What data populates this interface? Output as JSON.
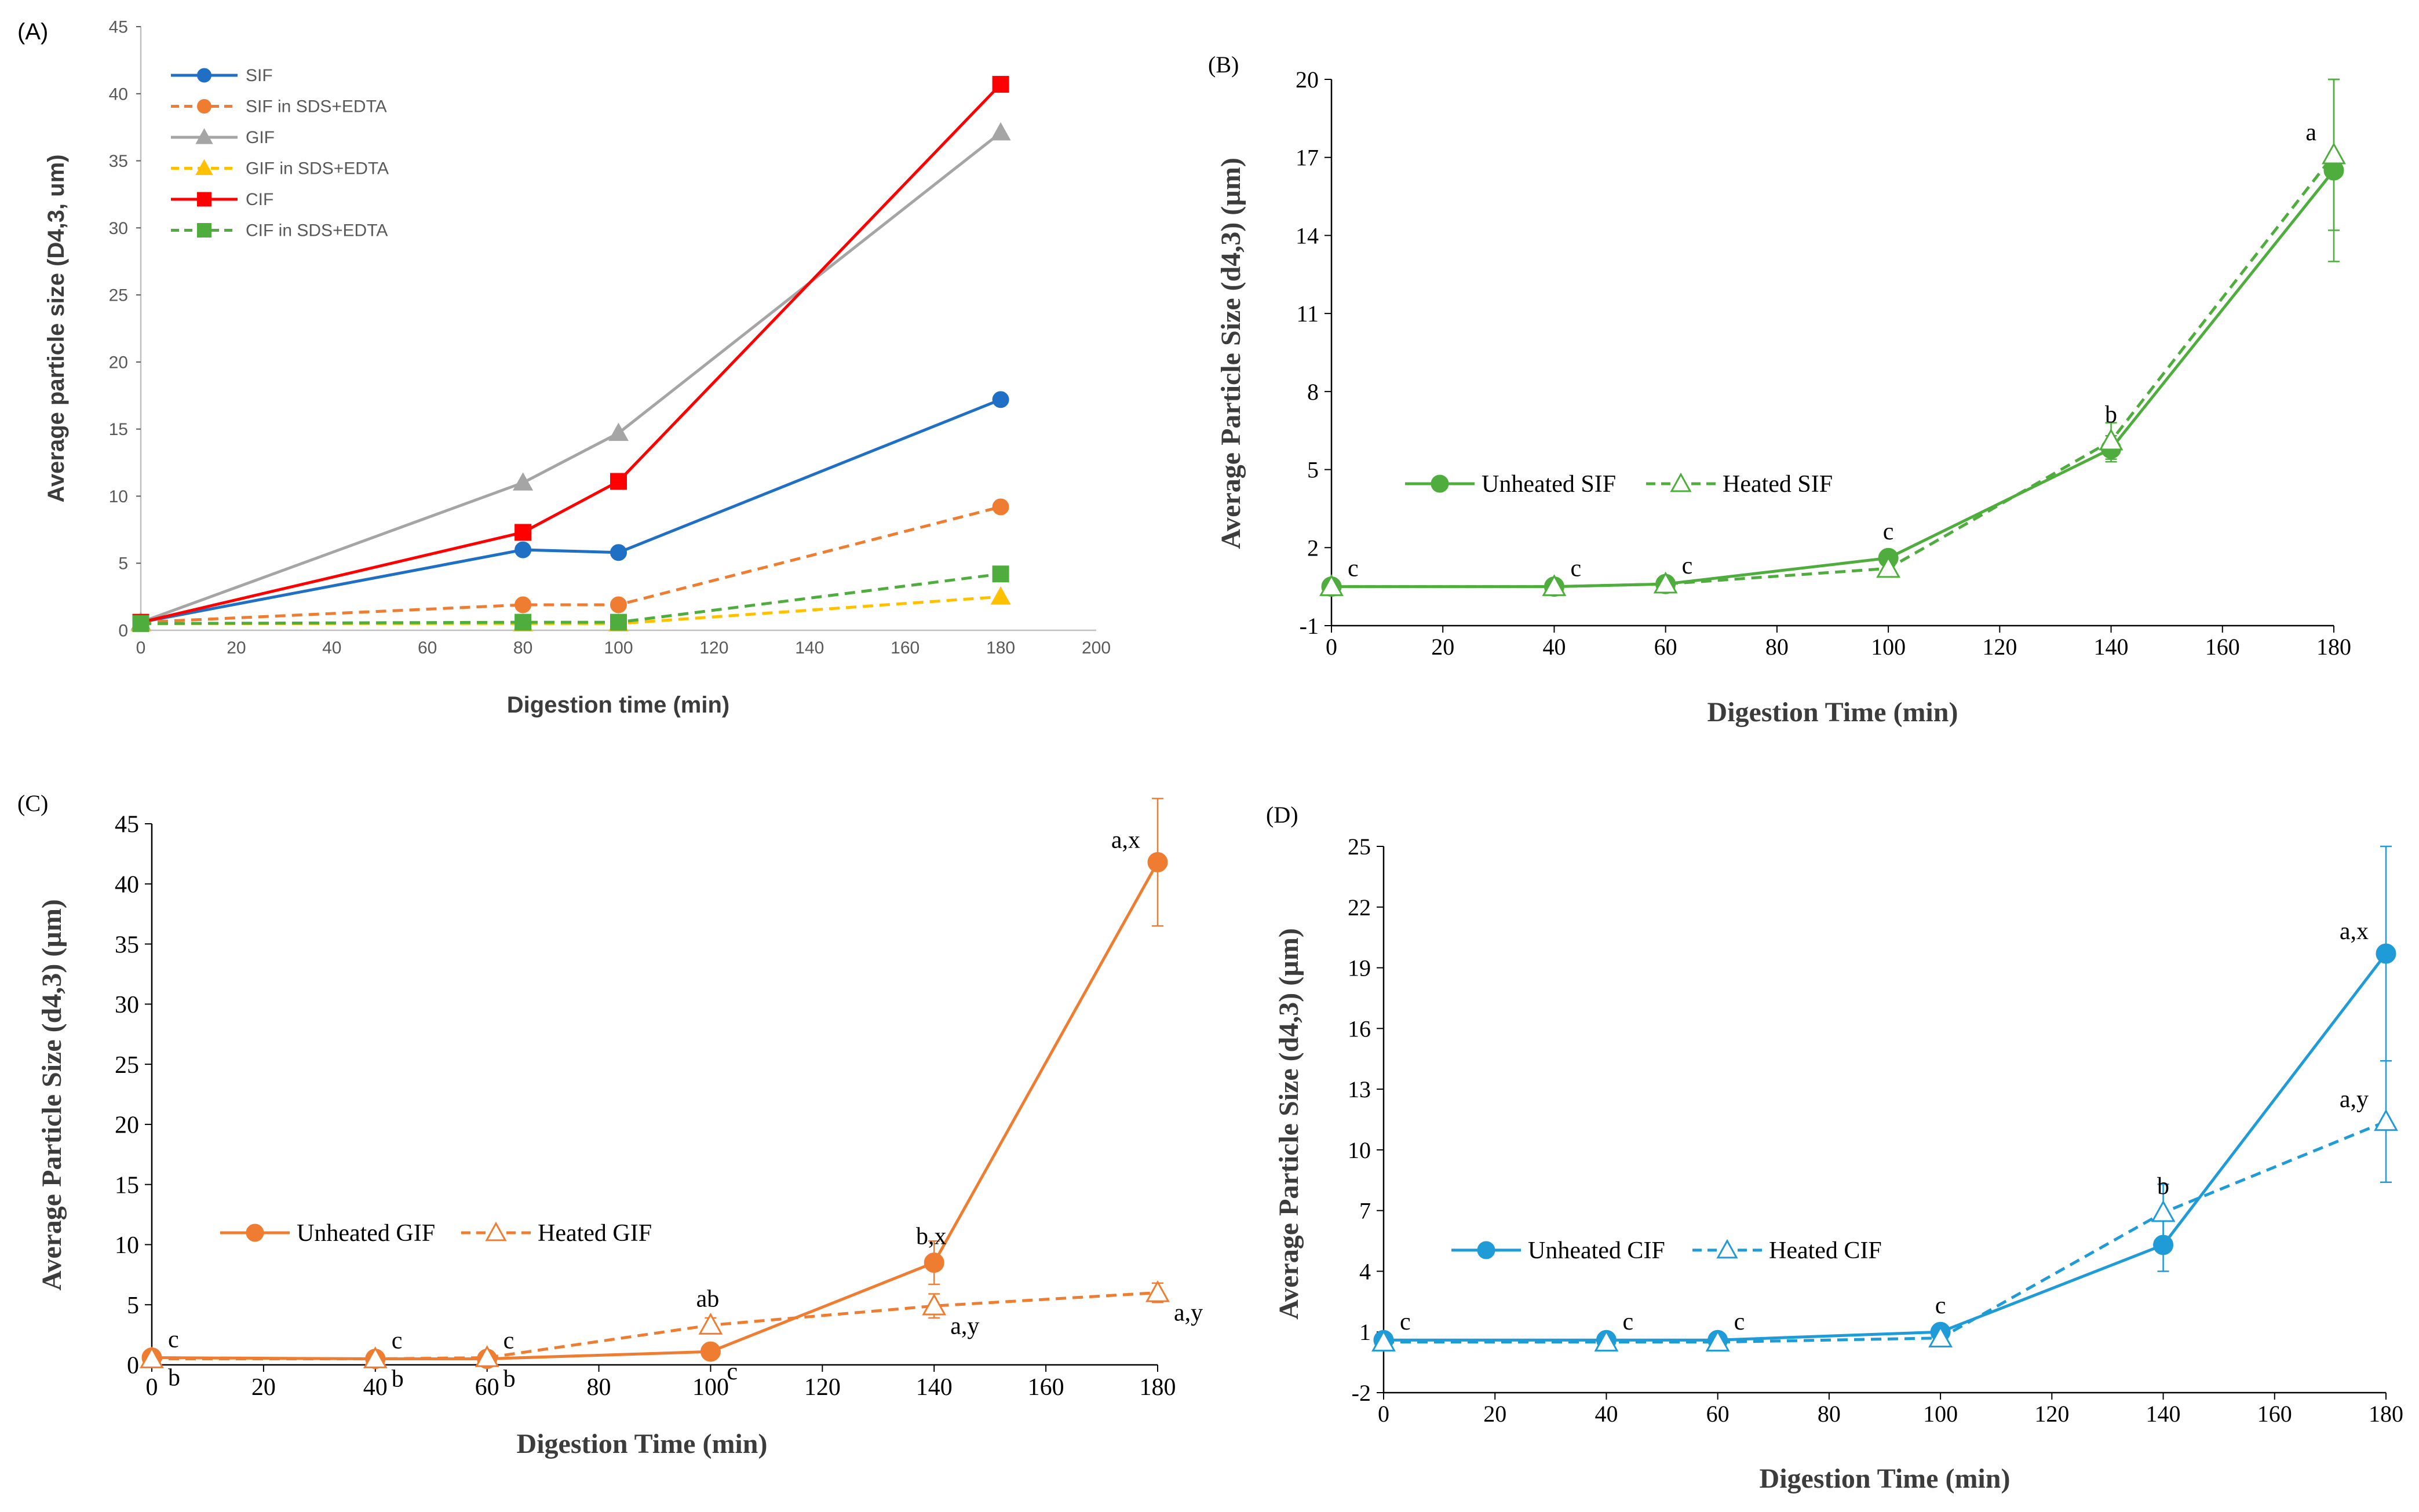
{
  "chart_data": [
    {
      "panel": "(A)",
      "type": "line",
      "title": "",
      "xlabel": "Digestion time (min)",
      "ylabel": "Average particle size (D4,3, um)",
      "xlim": [
        0,
        200
      ],
      "ylim": [
        0,
        45
      ],
      "xticks": [
        0,
        20,
        40,
        60,
        80,
        100,
        120,
        140,
        160,
        180,
        200
      ],
      "yticks": [
        0,
        5,
        10,
        15,
        20,
        25,
        30,
        35,
        40,
        45
      ],
      "legend_position": "top-left",
      "x": [
        0,
        80,
        100,
        180
      ],
      "series": [
        {
          "name": "SIF",
          "color": "#1f6fc5",
          "dashed": false,
          "marker": "circle",
          "values": [
            0.6,
            6.0,
            5.8,
            17.2
          ]
        },
        {
          "name": "SIF in SDS+EDTA",
          "color": "#ef7d31",
          "dashed": true,
          "marker": "circle",
          "values": [
            0.6,
            1.9,
            1.9,
            9.2
          ]
        },
        {
          "name": "GIF",
          "color": "#a5a5a5",
          "dashed": false,
          "marker": "triangle",
          "values": [
            0.6,
            11.0,
            14.7,
            37.1
          ]
        },
        {
          "name": "GIF in SDS+EDTA",
          "color": "#ffc000",
          "dashed": true,
          "marker": "triangle",
          "values": [
            0.5,
            0.5,
            0.5,
            2.5
          ]
        },
        {
          "name": "CIF",
          "color": "#ff0000",
          "dashed": false,
          "marker": "square",
          "values": [
            0.6,
            7.3,
            11.1,
            40.7
          ]
        },
        {
          "name": "CIF in SDS+EDTA",
          "color": "#4ead3c",
          "dashed": true,
          "marker": "square",
          "values": [
            0.5,
            0.6,
            0.6,
            4.2
          ]
        }
      ]
    },
    {
      "panel": "(B)",
      "type": "line",
      "title": "",
      "xlabel": "Digestion Time (min)",
      "ylabel": "Average Particle Size (d4,3) (µm)",
      "xlim": [
        0,
        180
      ],
      "ylim": [
        -1,
        20
      ],
      "xticks": [
        0,
        20,
        40,
        60,
        80,
        100,
        120,
        140,
        160,
        180
      ],
      "yticks": [
        -1,
        2,
        5,
        8,
        11,
        14,
        17,
        20
      ],
      "legend_position": "center-left",
      "x": [
        0,
        40,
        60,
        100,
        140,
        180
      ],
      "series": [
        {
          "name": "Unheated SIF",
          "color": "#4ead3c",
          "dashed": false,
          "marker": "circle",
          "values": [
            0.5,
            0.5,
            0.6,
            1.6,
            5.8,
            16.5
          ],
          "errors": [
            0.2,
            0.1,
            0.1,
            0.2,
            0.5,
            3.5
          ]
        },
        {
          "name": "Heated SIF",
          "color": "#4ead3c",
          "dashed": true,
          "marker": "triangle",
          "values": [
            0.5,
            0.5,
            0.6,
            1.2,
            6.1,
            17.1
          ],
          "errors": [
            0.2,
            0.1,
            0.1,
            0.2,
            0.7,
            2.9
          ]
        }
      ],
      "annotations": [
        {
          "text": "c",
          "x": 0,
          "y": 0.5
        },
        {
          "text": "c",
          "x": 40,
          "y": 0.5
        },
        {
          "text": "c",
          "x": 60,
          "y": 0.6
        },
        {
          "text": "c",
          "x": 100,
          "y": 1.6
        },
        {
          "text": "b",
          "x": 140,
          "y": 6.1
        },
        {
          "text": "a",
          "x": 180,
          "y": 17.1
        }
      ]
    },
    {
      "panel": "(C)",
      "type": "line",
      "title": "",
      "xlabel": "Digestion Time (min)",
      "ylabel": "Average Particle Size (d4,3) (µm)",
      "xlim": [
        0,
        180
      ],
      "ylim": [
        0,
        45
      ],
      "xticks": [
        0,
        20,
        40,
        60,
        80,
        100,
        120,
        140,
        160,
        180
      ],
      "yticks": [
        0,
        5,
        10,
        15,
        20,
        25,
        30,
        35,
        40,
        45
      ],
      "legend_position": "center-left",
      "x": [
        0,
        40,
        60,
        100,
        140,
        180
      ],
      "series": [
        {
          "name": "Unheated GIF",
          "color": "#ef7d31",
          "dashed": false,
          "marker": "circle",
          "values": [
            0.6,
            0.5,
            0.5,
            1.1,
            8.5,
            41.8
          ],
          "errors": [
            0.2,
            0.1,
            0.1,
            0.2,
            1.8,
            5.3
          ]
        },
        {
          "name": "Heated GIF",
          "color": "#ef7d31",
          "dashed": true,
          "marker": "triangle",
          "values": [
            0.5,
            0.5,
            0.6,
            3.3,
            4.9,
            6.0
          ],
          "errors": [
            0.1,
            0.1,
            0.1,
            0.6,
            1.0,
            0.8
          ]
        }
      ],
      "annotations": [
        {
          "text": "c",
          "x": 0,
          "y": 0.6,
          "pos": "above"
        },
        {
          "text": "b",
          "x": 0,
          "y": 0.6,
          "pos": "below"
        },
        {
          "text": "c",
          "x": 40,
          "y": 0.5,
          "pos": "above"
        },
        {
          "text": "b",
          "x": 40,
          "y": 0.5,
          "pos": "below"
        },
        {
          "text": "c",
          "x": 60,
          "y": 0.5,
          "pos": "above"
        },
        {
          "text": "b",
          "x": 60,
          "y": 0.5,
          "pos": "below"
        },
        {
          "text": "ab",
          "x": 100,
          "y": 3.3,
          "pos": "above"
        },
        {
          "text": "c",
          "x": 100,
          "y": 1.1,
          "pos": "below"
        },
        {
          "text": "b,x",
          "x": 140,
          "y": 8.5,
          "pos": "above"
        },
        {
          "text": "a,y",
          "x": 140,
          "y": 4.9,
          "pos": "below"
        },
        {
          "text": "a,x",
          "x": 180,
          "y": 41.8,
          "pos": "above"
        },
        {
          "text": "a,y",
          "x": 180,
          "y": 6.0,
          "pos": "below"
        }
      ]
    },
    {
      "panel": "(D)",
      "type": "line",
      "title": "",
      "xlabel": "Digestion Time (min)",
      "ylabel": "Average Particle Size (d4,3) (µm)",
      "xlim": [
        0,
        180
      ],
      "ylim": [
        -2,
        25
      ],
      "xticks": [
        0,
        20,
        40,
        60,
        80,
        100,
        120,
        140,
        160,
        180
      ],
      "yticks": [
        -2,
        1,
        4,
        7,
        10,
        13,
        16,
        19,
        22,
        25
      ],
      "legend_position": "center-left",
      "x": [
        0,
        40,
        60,
        100,
        140,
        180
      ],
      "series": [
        {
          "name": "Unheated CIF",
          "color": "#1f9bd7",
          "dashed": false,
          "marker": "circle",
          "values": [
            0.6,
            0.6,
            0.6,
            1.0,
            5.3,
            19.7
          ],
          "errors": [
            0.1,
            0.1,
            0.1,
            0.2,
            1.3,
            5.3
          ]
        },
        {
          "name": "Heated CIF",
          "color": "#1f9bd7",
          "dashed": true,
          "marker": "triangle",
          "values": [
            0.5,
            0.5,
            0.5,
            0.7,
            6.9,
            11.4
          ],
          "errors": [
            0.1,
            0.1,
            0.1,
            0.2,
            1.4,
            3.0
          ]
        }
      ],
      "annotations": [
        {
          "text": "c",
          "x": 0,
          "y": 0.6
        },
        {
          "text": "c",
          "x": 40,
          "y": 0.6
        },
        {
          "text": "c",
          "x": 60,
          "y": 0.6
        },
        {
          "text": "c",
          "x": 100,
          "y": 1.0
        },
        {
          "text": "b",
          "x": 140,
          "y": 6.9
        },
        {
          "text": "a,x",
          "x": 180,
          "y": 19.7
        },
        {
          "text": "a,y",
          "x": 180,
          "y": 11.4
        }
      ]
    }
  ]
}
